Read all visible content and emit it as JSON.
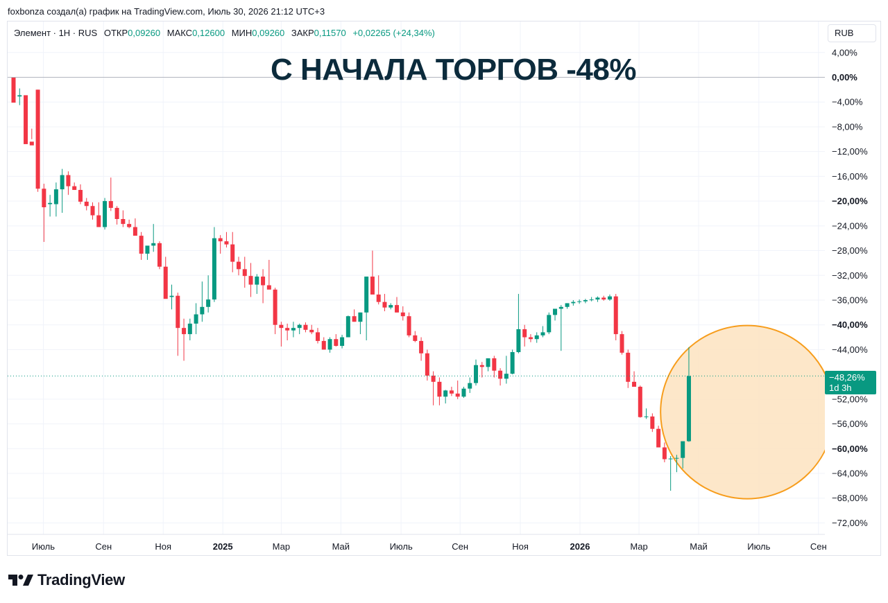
{
  "header": {
    "credit": "foxbonza создал(а) график на TradingView.com, Июль 30, 2026 21:12 UTC+3"
  },
  "legend": {
    "symbol": "Элемент · 1Н · RUS",
    "open_label": "ОТКР",
    "open_value": "0,09260",
    "high_label": "МАКС",
    "high_value": "0,12600",
    "low_label": "МИН",
    "low_value": "0,09260",
    "close_label": "ЗАКР",
    "close_value": "0,11570",
    "change": "+0,02265 (+24,34%)"
  },
  "annotation": {
    "headline": "С НАЧАЛА ТОРГОВ -48%"
  },
  "toolbar": {
    "currency": "RUB"
  },
  "last_price": {
    "value": "−48,26%",
    "countdown": "1d 3h"
  },
  "footer": {
    "brand": "TradingView"
  },
  "colors": {
    "up": "#089981",
    "down": "#f23645",
    "highlight_fill": "#fde3c0",
    "highlight_stroke": "#f79d1c",
    "title": "#0c2b3c",
    "grid": "#f0f3fa"
  },
  "chart_data": {
    "type": "candlestick",
    "y_scale": "percent change from first close",
    "ylim": [
      -74,
      6
    ],
    "y_ticks": [
      {
        "value": 4,
        "label": "4,00%"
      },
      {
        "value": 0,
        "label": "0,00%",
        "bold": true
      },
      {
        "value": -4,
        "label": "−4,00%"
      },
      {
        "value": -8,
        "label": "−8,00%"
      },
      {
        "value": -12,
        "label": "−12,00%"
      },
      {
        "value": -16,
        "label": "−16,00%"
      },
      {
        "value": -20,
        "label": "−20,00%",
        "bold": true
      },
      {
        "value": -24,
        "label": "−24,00%"
      },
      {
        "value": -28,
        "label": "−28,00%"
      },
      {
        "value": -32,
        "label": "−32,00%"
      },
      {
        "value": -36,
        "label": "−36,00%"
      },
      {
        "value": -40,
        "label": "−40,00%",
        "bold": true
      },
      {
        "value": -44,
        "label": "−44,00%"
      },
      {
        "value": -52,
        "label": "−52,00%"
      },
      {
        "value": -56,
        "label": "−56,00%"
      },
      {
        "value": -60,
        "label": "−60,00%",
        "bold": true
      },
      {
        "value": -64,
        "label": "−64,00%"
      },
      {
        "value": -68,
        "label": "−68,00%"
      },
      {
        "value": -72,
        "label": "−72,00%"
      }
    ],
    "x_ticks": [
      {
        "label": "Июль",
        "bar": 4.9,
        "bold": false
      },
      {
        "label": "Сен",
        "bar": 14.8,
        "bold": false
      },
      {
        "label": "Ноя",
        "bar": 24.6,
        "bold": false
      },
      {
        "label": "2025",
        "bar": 34.4,
        "bold": true
      },
      {
        "label": "Мар",
        "bar": 44.0,
        "bold": false
      },
      {
        "label": "Май",
        "bar": 53.8,
        "bold": false
      },
      {
        "label": "Июль",
        "bar": 63.7,
        "bold": false
      },
      {
        "label": "Сен",
        "bar": 73.4,
        "bold": false
      },
      {
        "label": "Ноя",
        "bar": 83.3,
        "bold": false
      },
      {
        "label": "2026",
        "bar": 93.1,
        "bold": true
      },
      {
        "label": "Мар",
        "bar": 102.8,
        "bold": false
      },
      {
        "label": "Май",
        "bar": 112.6,
        "bold": false
      },
      {
        "label": "Июль",
        "bar": 122.5,
        "bold": false
      },
      {
        "label": "Сен",
        "bar": 132.3,
        "bold": false
      }
    ],
    "last_value": -48.26,
    "highlight": {
      "bar": 120.6,
      "value": -54.1
    },
    "ohlc": [
      [
        0,
        -2.8,
        -0.1,
        -4.1,
        -3.1
      ],
      [
        -3.1,
        -1.8,
        -4.5,
        -2.9
      ],
      [
        -2.9,
        -10.2,
        -3.0,
        -10.8
      ],
      [
        -10.4,
        -10.0,
        -8.3,
        -11.0
      ],
      [
        -2.0,
        -2.0,
        -18.5,
        -18.0
      ],
      [
        -18.0,
        -17.2,
        -26.6,
        -21.0
      ],
      [
        -20.5,
        -19.0,
        -22.5,
        -20.3
      ],
      [
        -20.5,
        -17.0,
        -22.5,
        -18.1
      ],
      [
        -18.1,
        -14.8,
        -21.9,
        -15.8
      ],
      [
        -15.8,
        -15.2,
        -19.0,
        -17.6
      ],
      [
        -17.6,
        -17.0,
        -18.2,
        -18.2
      ],
      [
        -18.2,
        -17.3,
        -20.5,
        -20.1
      ],
      [
        -20.1,
        -19.5,
        -21.5,
        -20.8
      ],
      [
        -20.8,
        -20.2,
        -23.0,
        -22.3
      ],
      [
        -22.3,
        -20.2,
        -24.0,
        -24.2
      ],
      [
        -24.2,
        -19.5,
        -24.6,
        -20.0
      ],
      [
        -20.0,
        -16.2,
        -21.6,
        -21.1
      ],
      [
        -21.1,
        -20.8,
        -23.8,
        -22.9
      ],
      [
        -22.9,
        -21.5,
        -24.2,
        -23.7
      ],
      [
        -23.7,
        -23.0,
        -24.4,
        -24.2
      ],
      [
        -24.2,
        -22.8,
        -25.5,
        -25.6
      ],
      [
        -25.6,
        -25.0,
        -29.5,
        -28.5
      ],
      [
        -28.5,
        -27.4,
        -29.5,
        -27.2
      ],
      [
        -27.2,
        -23.7,
        -28.2,
        -26.8
      ],
      [
        -26.8,
        -26.5,
        -31.0,
        -30.6
      ],
      [
        -30.6,
        -29.0,
        -35.5,
        -35.8
      ],
      [
        -35.5,
        -33.5,
        -37.5,
        -35.3
      ],
      [
        -35.3,
        -34.8,
        -45.0,
        -40.5
      ],
      [
        -40.5,
        -39.0,
        -45.8,
        -41.5
      ],
      [
        -41.5,
        -39.0,
        -42.5,
        -39.8
      ],
      [
        -39.8,
        -36.5,
        -41.5,
        -38.3
      ],
      [
        -38.3,
        -33.0,
        -39.5,
        -37.1
      ],
      [
        -37.1,
        -32.0,
        -38.0,
        -35.9
      ],
      [
        -35.9,
        -24.2,
        -36.3,
        -26.0
      ],
      [
        -26.0,
        -25.5,
        -28.5,
        -26.5
      ],
      [
        -26.5,
        -25.0,
        -27.5,
        -27.0
      ],
      [
        -27.0,
        -25.0,
        -31.5,
        -29.8
      ],
      [
        -29.8,
        -29.0,
        -32.0,
        -31.0
      ],
      [
        -31.0,
        -29.0,
        -34.0,
        -32.1
      ],
      [
        -32.1,
        -30.0,
        -35.5,
        -33.5
      ],
      [
        -33.5,
        -31.8,
        -35.0,
        -32.2
      ],
      [
        -32.2,
        -31.0,
        -36.5,
        -33.6
      ],
      [
        -33.6,
        -29.5,
        -34.0,
        -34.3
      ],
      [
        -34.3,
        -34.0,
        -41.5,
        -40.0
      ],
      [
        -40.0,
        -39.5,
        -43.5,
        -40.5
      ],
      [
        -40.5,
        -39.8,
        -42.5,
        -40.9
      ],
      [
        -40.9,
        -39.5,
        -42.0,
        -40.5
      ],
      [
        -40.5,
        -39.8,
        -41.5,
        -40.0
      ],
      [
        -40.0,
        -39.6,
        -41.2,
        -40.8
      ],
      [
        -40.8,
        -40.0,
        -41.5,
        -41.2
      ],
      [
        -41.2,
        -40.5,
        -43.0,
        -42.6
      ],
      [
        -42.6,
        -42.0,
        -44.0,
        -44.0
      ],
      [
        -44.0,
        -42.0,
        -44.5,
        -42.3
      ],
      [
        -42.3,
        -41.5,
        -43.5,
        -43.4
      ],
      [
        -43.4,
        -41.6,
        -43.8,
        -42.0
      ],
      [
        -42.0,
        -38.5,
        -42.0,
        -38.6
      ],
      [
        -38.6,
        -37.5,
        -39.5,
        -39.5
      ],
      [
        -39.5,
        -38.0,
        -41.5,
        -38.0
      ],
      [
        -38.0,
        -36.0,
        -42.5,
        -32.2
      ],
      [
        -32.2,
        -28.0,
        -33.0,
        -35.1
      ],
      [
        -35.1,
        -32.0,
        -36.7,
        -36.3
      ],
      [
        -36.3,
        -35.0,
        -37.8,
        -37.2
      ],
      [
        -37.2,
        -36.5,
        -37.5,
        -36.8
      ],
      [
        -36.8,
        -35.5,
        -38.0,
        -38.0
      ],
      [
        -38.0,
        -37.0,
        -39.3,
        -38.6
      ],
      [
        -38.6,
        -38.0,
        -42.0,
        -41.7
      ],
      [
        -41.7,
        -41.0,
        -42.8,
        -42.6
      ],
      [
        -42.6,
        -42.0,
        -45.8,
        -44.6
      ],
      [
        -44.6,
        -44.0,
        -49.0,
        -48.2
      ],
      [
        -48.2,
        -47.5,
        -53.0,
        -49.2
      ],
      [
        -49.2,
        -48.5,
        -53.0,
        -51.6
      ],
      [
        -51.6,
        -50.5,
        -52.7,
        -50.6
      ],
      [
        -50.6,
        -50.0,
        -51.5,
        -51.1
      ],
      [
        -51.1,
        -49.0,
        -52.0,
        -51.6
      ],
      [
        -51.6,
        -50.0,
        -51.8,
        -50.3
      ],
      [
        -50.3,
        -48.5,
        -51.0,
        -49.4
      ],
      [
        -49.4,
        -45.6,
        -49.8,
        -46.5
      ],
      [
        -46.5,
        -46.0,
        -48.5,
        -46.8
      ],
      [
        -46.8,
        -45.5,
        -47.5,
        -45.4
      ],
      [
        -45.4,
        -45.0,
        -48.5,
        -47.4
      ],
      [
        -47.4,
        -47.0,
        -49.8,
        -48.7
      ],
      [
        -48.7,
        -45.0,
        -49.5,
        -47.9
      ],
      [
        -47.9,
        -44.0,
        -48.0,
        -44.4
      ],
      [
        -44.4,
        -35.0,
        -44.6,
        -40.7
      ],
      [
        -40.7,
        -40.0,
        -43.5,
        -42.0
      ],
      [
        -42.0,
        -41.5,
        -42.8,
        -42.3
      ],
      [
        -42.3,
        -41.2,
        -42.9,
        -41.7
      ],
      [
        -41.7,
        -40.2,
        -42.0,
        -41.2
      ],
      [
        -41.2,
        -38.0,
        -41.5,
        -38.4
      ],
      [
        -38.4,
        -38.0,
        -39.3,
        -37.4
      ],
      [
        -37.4,
        -36.8,
        -44.2,
        -37.1
      ],
      [
        -37.1,
        -36.5,
        -37.4,
        -36.5
      ],
      [
        -36.5,
        -36.0,
        -36.9,
        -36.3
      ],
      [
        -36.3,
        -35.9,
        -36.6,
        -36.2
      ],
      [
        -36.2,
        -35.8,
        -36.5,
        -36.0
      ],
      [
        -36.0,
        -35.5,
        -36.2,
        -35.9
      ],
      [
        -35.9,
        -35.4,
        -36.3,
        -35.6
      ],
      [
        -35.6,
        -35.3,
        -36.1,
        -35.9
      ],
      [
        -35.9,
        -35.1,
        -36.1,
        -35.4
      ],
      [
        -35.4,
        -35.0,
        -42.5,
        -41.5
      ],
      [
        -41.5,
        -41.0,
        -44.8,
        -44.5
      ],
      [
        -44.5,
        -44.0,
        -50.2,
        -49.2
      ],
      [
        -49.2,
        -47.5,
        -50.0,
        -50.0
      ],
      [
        -50.0,
        -49.8,
        -55.0,
        -54.9
      ],
      [
        -54.9,
        -53.5,
        -55.2,
        -54.8
      ],
      [
        -54.8,
        -54.3,
        -57.3,
        -56.8
      ],
      [
        -56.8,
        -56.3,
        -59.8,
        -59.8
      ],
      [
        -59.8,
        -59.0,
        -62.2,
        -61.7
      ],
      [
        -61.7,
        -61.2,
        -66.8,
        -61.6
      ],
      [
        -61.6,
        -61.0,
        -63.8,
        -61.5
      ],
      [
        -61.5,
        -60.5,
        -63.2,
        -58.8
      ],
      [
        -58.8,
        -43.6,
        -58.9,
        -48.26
      ]
    ]
  }
}
